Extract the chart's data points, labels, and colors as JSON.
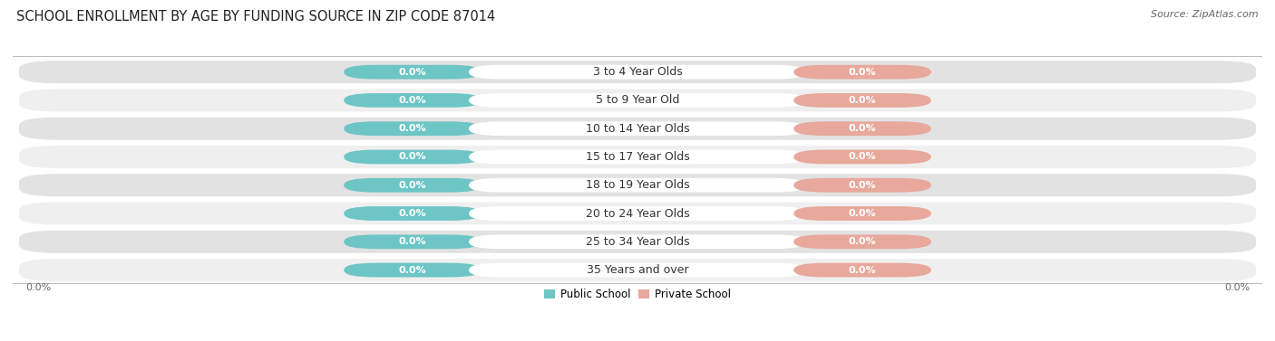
{
  "title": "SCHOOL ENROLLMENT BY AGE BY FUNDING SOURCE IN ZIP CODE 87014",
  "source": "Source: ZipAtlas.com",
  "categories": [
    "3 to 4 Year Olds",
    "5 to 9 Year Old",
    "10 to 14 Year Olds",
    "15 to 17 Year Olds",
    "18 to 19 Year Olds",
    "20 to 24 Year Olds",
    "25 to 34 Year Olds",
    "35 Years and over"
  ],
  "public_values": [
    0.0,
    0.0,
    0.0,
    0.0,
    0.0,
    0.0,
    0.0,
    0.0
  ],
  "private_values": [
    0.0,
    0.0,
    0.0,
    0.0,
    0.0,
    0.0,
    0.0,
    0.0
  ],
  "public_color": "#6DC5C5",
  "private_color": "#E8A89C",
  "row_bg_color_odd": "#E2E2E2",
  "row_bg_color_even": "#EFEFEF",
  "label_text_color": "#FFFFFF",
  "category_label_color": "#333333",
  "title_fontsize": 10.5,
  "source_fontsize": 8,
  "label_fontsize": 8,
  "cat_fontsize": 9,
  "background_color": "#FFFFFF",
  "axis_label_left": "0.0%",
  "axis_label_right": "0.0%"
}
